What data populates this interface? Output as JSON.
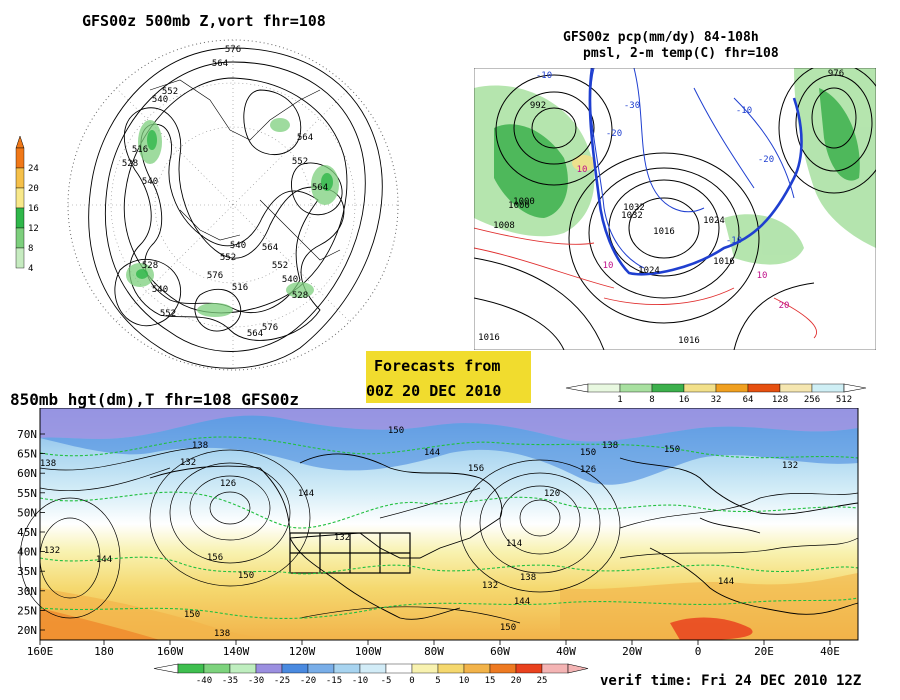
{
  "panel_500mb": {
    "title": "GFS00z  500mb Z,vort   fhr=108",
    "colorbar_ticks": [
      "24",
      "20",
      "16",
      "12",
      "8",
      "4"
    ],
    "colorbar_colors": [
      "#f07818",
      "#f5c04a",
      "#f8e88a",
      "#2fb74a",
      "#7dcf7d",
      "#c6ebc0"
    ],
    "contour_labels": [
      "576",
      "564",
      "552",
      "540",
      "516",
      "528",
      "540",
      "564",
      "552",
      "564",
      "540",
      "552",
      "576",
      "564",
      "552",
      "540",
      "528",
      "576",
      "564",
      "552",
      "540",
      "528",
      "516"
    ]
  },
  "panel_pcp": {
    "title_line1": "GFS00z pcp(mm/dy) 84-108h",
    "title_line2": "pmsl, 2-m temp(C)  fhr=108",
    "colorbar_ticks": [
      "1",
      "8",
      "16",
      "32",
      "64",
      "128",
      "256",
      "512"
    ],
    "colorbar_colors": [
      "#e8f8e0",
      "#a8e0a0",
      "#3cb04c",
      "#f2e08a",
      "#f0a020",
      "#e65010",
      "#f5e6b0",
      "#cfeff5"
    ],
    "pressure_labels": [
      "992",
      "1000",
      "1008",
      "1016",
      "1024",
      "1032",
      "1016",
      "1024",
      "1016",
      "1016",
      "976",
      "1000",
      "1032"
    ],
    "temp_labels": [
      "-10",
      "-20",
      "-30",
      "10",
      "10",
      "-10",
      "-20",
      "10",
      "20",
      "-10"
    ]
  },
  "forecast_box": {
    "line1": "Forecasts from",
    "line2": "00Z 20 DEC 2010"
  },
  "panel_850mb": {
    "title": "850mb hgt(dm),T  fhr=108 GFS00z",
    "lat_labels": [
      "70N",
      "65N",
      "60N",
      "55N",
      "50N",
      "45N",
      "40N",
      "35N",
      "30N",
      "25N",
      "20N"
    ],
    "lon_labels": [
      "160E",
      "180",
      "160W",
      "140W",
      "120W",
      "100W",
      "80W",
      "60W",
      "40W",
      "20W",
      "0",
      "20E",
      "40E"
    ],
    "height_labels": [
      "138",
      "150",
      "132",
      "126",
      "144",
      "138",
      "132",
      "144",
      "156",
      "150",
      "144",
      "156",
      "132",
      "126",
      "120",
      "114",
      "132",
      "138",
      "144",
      "150",
      "150",
      "138",
      "144",
      "150",
      "150",
      "138",
      "132"
    ],
    "colorbar_ticks": [
      "-40",
      "-35",
      "-30",
      "-25",
      "-20",
      "-15",
      "-10",
      "-5",
      "0",
      "5",
      "10",
      "15",
      "20",
      "25"
    ],
    "colorbar_colors": [
      "#3fbf4f",
      "#7dd37d",
      "#bfeebf",
      "#9b8fe0",
      "#4a8ae0",
      "#79aee8",
      "#a8d4f0",
      "#d2ecf7",
      "#ffffff",
      "#f8f2b0",
      "#f5d86e",
      "#f2b34a",
      "#ee7a22",
      "#e9421e",
      "#f4b4b4"
    ]
  },
  "verif_time": "verif time: Fri 24 DEC 2010 12Z"
}
